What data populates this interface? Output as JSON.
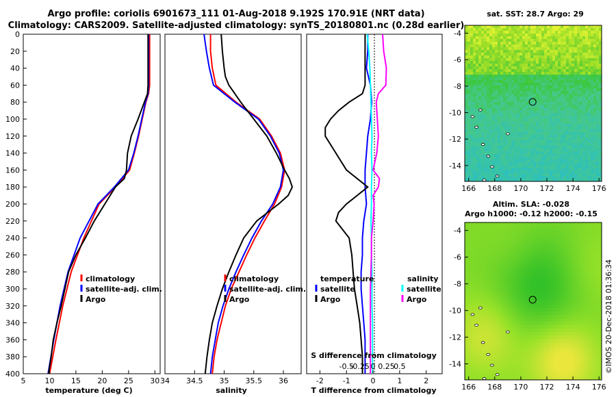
{
  "title_line1": "Argo profile: coriolis 6901673_111 01-Aug-2018 9.192S 170.91E (NRT data)",
  "title_line2": "Climatology: CARS2009. Satellite-adjusted climatology: synTS_20180801.nc (0.28d earlier)",
  "map1_title": "sat. SST: 28.7 Argo: 29",
  "map2_title1": "Altim. SLA: -0.028",
  "map2_title2": "Argo h1000: -0.12 h2000: -0.15",
  "credit": "©IMOS 20-Dec-2018 01:36:34",
  "colors": {
    "clim": "#ff0000",
    "sat": "#0000ff",
    "argo": "#000000",
    "sat_s": "#00ffff",
    "clim_s": "#ff00ff"
  },
  "chart_data": [
    {
      "type": "line",
      "name": "temperature",
      "xlabel": "temperature (deg C)",
      "ylabel": "",
      "xlim": [
        5,
        31
      ],
      "ylim": [
        400,
        0
      ],
      "xticks": [
        "5",
        "10",
        "15",
        "20",
        "25",
        "30"
      ],
      "xtick_values": [
        5,
        10,
        15,
        20,
        25,
        30
      ],
      "yticks": [
        "0",
        "20",
        "40",
        "60",
        "80",
        "100",
        "120",
        "140",
        "160",
        "180",
        "200",
        "220",
        "240",
        "260",
        "280",
        "300",
        "320",
        "340",
        "360",
        "380",
        "400"
      ],
      "legend": [
        "climatology",
        "satellite-adj. clim.",
        "Argo"
      ],
      "series": [
        {
          "name": "climatology",
          "depth": [
            0,
            20,
            40,
            60,
            70,
            80,
            100,
            120,
            140,
            160,
            180,
            200,
            240,
            280,
            320,
            360,
            400
          ],
          "values": [
            29,
            29,
            29,
            29,
            28.8,
            28.3,
            27.6,
            26.9,
            26.1,
            25.2,
            22.5,
            19.4,
            16.5,
            14.1,
            12.5,
            11.2,
            10
          ]
        },
        {
          "name": "satellite-adj. clim.",
          "depth": [
            0,
            20,
            40,
            60,
            70,
            80,
            100,
            120,
            140,
            160,
            180,
            200,
            240,
            280,
            320,
            360,
            400
          ],
          "values": [
            28.8,
            28.8,
            28.8,
            28.8,
            28.7,
            28.2,
            27.5,
            26.8,
            26,
            25,
            22.3,
            19.2,
            15.8,
            13.5,
            12,
            10.8,
            9.7
          ]
        },
        {
          "name": "Argo",
          "depth": [
            0,
            20,
            40,
            60,
            70,
            80,
            100,
            120,
            140,
            150,
            160,
            170,
            180,
            190,
            200,
            220,
            240,
            260,
            280,
            300,
            320,
            340,
            360,
            380,
            400
          ],
          "values": [
            28.7,
            28.7,
            28.7,
            28.7,
            28.6,
            28,
            26.8,
            25.5,
            24.8,
            24.7,
            24.6,
            24.2,
            22.5,
            21.5,
            20.5,
            18.5,
            16.8,
            15,
            13.6,
            12.9,
            12.2,
            11.4,
            10.7,
            10.3,
            9.8
          ]
        }
      ]
    },
    {
      "type": "line",
      "name": "salinity",
      "xlabel": "salinity",
      "ylabel": "",
      "xlim": [
        34,
        36.3
      ],
      "ylim": [
        400,
        0
      ],
      "xticks": [
        "34",
        "34.5",
        "35",
        "35.5",
        "36"
      ],
      "xtick_values": [
        34,
        34.5,
        35,
        35.5,
        36
      ],
      "legend": [
        "climatology",
        "satellite-adj. clim.",
        "Argo"
      ],
      "series": [
        {
          "name": "climatology",
          "depth": [
            0,
            20,
            40,
            60,
            80,
            100,
            120,
            140,
            160,
            180,
            200,
            220,
            240,
            260,
            280,
            300,
            320,
            340,
            360,
            380,
            400
          ],
          "values": [
            34.77,
            34.77,
            34.8,
            34.86,
            35.2,
            35.6,
            35.8,
            35.95,
            36.02,
            35.97,
            35.85,
            35.68,
            35.52,
            35.38,
            35.25,
            35.12,
            35.02,
            34.95,
            34.88,
            34.83,
            34.8
          ]
        },
        {
          "name": "satellite-adj. clim.",
          "depth": [
            0,
            20,
            40,
            60,
            80,
            100,
            120,
            140,
            160,
            180,
            200,
            220,
            240,
            260,
            280,
            300,
            320,
            340,
            360,
            380,
            400
          ],
          "values": [
            34.66,
            34.7,
            34.75,
            34.82,
            35.18,
            35.58,
            35.78,
            35.93,
            36.0,
            35.95,
            35.82,
            35.63,
            35.47,
            35.33,
            35.2,
            35.08,
            34.98,
            34.9,
            34.85,
            34.8,
            34.77
          ]
        },
        {
          "name": "Argo",
          "depth": [
            0,
            20,
            40,
            50,
            60,
            70,
            80,
            100,
            120,
            140,
            160,
            170,
            180,
            190,
            200,
            220,
            240,
            260,
            280,
            300,
            320,
            340,
            360,
            380,
            400
          ],
          "values": [
            34.95,
            34.97,
            35.0,
            35.02,
            35.08,
            35.18,
            35.28,
            35.5,
            35.72,
            35.88,
            36.02,
            36.1,
            36.15,
            36.08,
            35.92,
            35.55,
            35.33,
            35.2,
            35.08,
            34.97,
            34.88,
            34.8,
            34.75,
            34.71,
            34.68
          ]
        }
      ]
    },
    {
      "type": "line",
      "name": "difference",
      "xlabel": "T difference from climatology",
      "xlabel2": "S difference from climatology",
      "xlim": [
        -2.5,
        2.6
      ],
      "ylim": [
        400,
        0
      ],
      "xticks": [
        "-2",
        "-1",
        "0",
        "1",
        "2"
      ],
      "xtick_values": [
        -2,
        -1,
        0,
        1,
        2
      ],
      "s_ticks": [
        "-0.5",
        "-0.25",
        "0",
        "0.25",
        "0.5"
      ],
      "s_tick_values": [
        -0.5,
        -0.25,
        0,
        0.25,
        0.5
      ],
      "legend_left_title": "temperature",
      "legend_right_title": "salinity",
      "legend_left": [
        "satellite",
        "Argo"
      ],
      "legend_right": [
        "satellite",
        "Argo"
      ],
      "series": [
        {
          "name": "T satellite",
          "depth": [
            0,
            20,
            40,
            60,
            80,
            100,
            120,
            140,
            160,
            180,
            200,
            220,
            240,
            260,
            280,
            300,
            320,
            340,
            360,
            380,
            400
          ],
          "values": [
            -0.2,
            -0.2,
            -0.25,
            -0.1,
            -0.05,
            -0.1,
            -0.2,
            -0.25,
            -0.3,
            -0.3,
            -0.25,
            -0.35,
            -0.4,
            -0.4,
            -0.45,
            -0.45,
            -0.4,
            -0.35,
            -0.3,
            -0.3,
            -0.3
          ]
        },
        {
          "name": "T Argo",
          "depth": [
            0,
            20,
            40,
            60,
            70,
            80,
            90,
            100,
            110,
            120,
            140,
            160,
            180,
            190,
            200,
            210,
            220,
            240,
            260,
            280,
            300,
            320,
            340,
            360,
            380,
            400
          ],
          "values": [
            -0.3,
            -0.3,
            -0.3,
            -0.3,
            -0.4,
            -0.9,
            -1.3,
            -1.6,
            -1.8,
            -1.8,
            -1.4,
            -1.0,
            -0.2,
            -0.6,
            -1.0,
            -1.3,
            -1.4,
            -0.9,
            -0.8,
            -0.75,
            -0.7,
            -0.6,
            -0.5,
            -0.45,
            -0.4,
            -0.4
          ]
        },
        {
          "name": "S satellite",
          "depth": [
            0,
            20,
            40,
            60,
            80,
            100,
            120,
            140,
            160,
            180,
            200,
            220,
            240,
            260,
            280,
            300,
            320,
            340,
            360,
            380,
            400
          ],
          "values": [
            -0.11,
            -0.08,
            -0.06,
            -0.05,
            -0.04,
            -0.03,
            -0.02,
            -0.03,
            -0.02,
            -0.03,
            -0.03,
            -0.04,
            -0.03,
            -0.03,
            -0.02,
            -0.02,
            -0.02,
            -0.01,
            -0.01,
            -0.01,
            -0.01
          ]
        },
        {
          "name": "S Argo",
          "depth": [
            0,
            20,
            40,
            60,
            70,
            80,
            100,
            120,
            140,
            160,
            170,
            180,
            190,
            200,
            220,
            240,
            260,
            280,
            300,
            320,
            340,
            360,
            380,
            400
          ],
          "values": [
            0.18,
            0.2,
            0.25,
            0.24,
            0.1,
            0.06,
            0.08,
            0.1,
            0.07,
            0.0,
            0.12,
            0.1,
            0.0,
            0.02,
            0.0,
            -0.03,
            -0.03,
            -0.04,
            -0.05,
            -0.05,
            -0.05,
            -0.05,
            -0.05,
            -0.05
          ]
        }
      ]
    },
    {
      "type": "heatmap",
      "name": "sst_map",
      "xticks": [
        "166",
        "168",
        "170",
        "172",
        "174",
        "176"
      ],
      "xtick_values": [
        166,
        168,
        170,
        172,
        174,
        176
      ],
      "yticks": [
        "-4",
        "-6",
        "-8",
        "-10",
        "-12",
        "-14"
      ],
      "ytick_values": [
        -4,
        -6,
        -8,
        -10,
        -12,
        -14
      ],
      "xlim": [
        165.7,
        176.2
      ],
      "ylim": [
        -15.2,
        -3.4
      ],
      "marker": [
        170.91,
        -9.192
      ]
    },
    {
      "type": "heatmap",
      "name": "sla_map",
      "xticks": [
        "166",
        "168",
        "170",
        "172",
        "174",
        "176"
      ],
      "xtick_values": [
        166,
        168,
        170,
        172,
        174,
        176
      ],
      "yticks": [
        "-4",
        "-6",
        "-8",
        "-10",
        "-12",
        "-14"
      ],
      "ytick_values": [
        -4,
        -6,
        -8,
        -10,
        -12,
        -14
      ],
      "xlim": [
        165.7,
        176.2
      ],
      "ylim": [
        -15.2,
        -3.4
      ],
      "marker": [
        170.91,
        -9.192
      ]
    }
  ]
}
